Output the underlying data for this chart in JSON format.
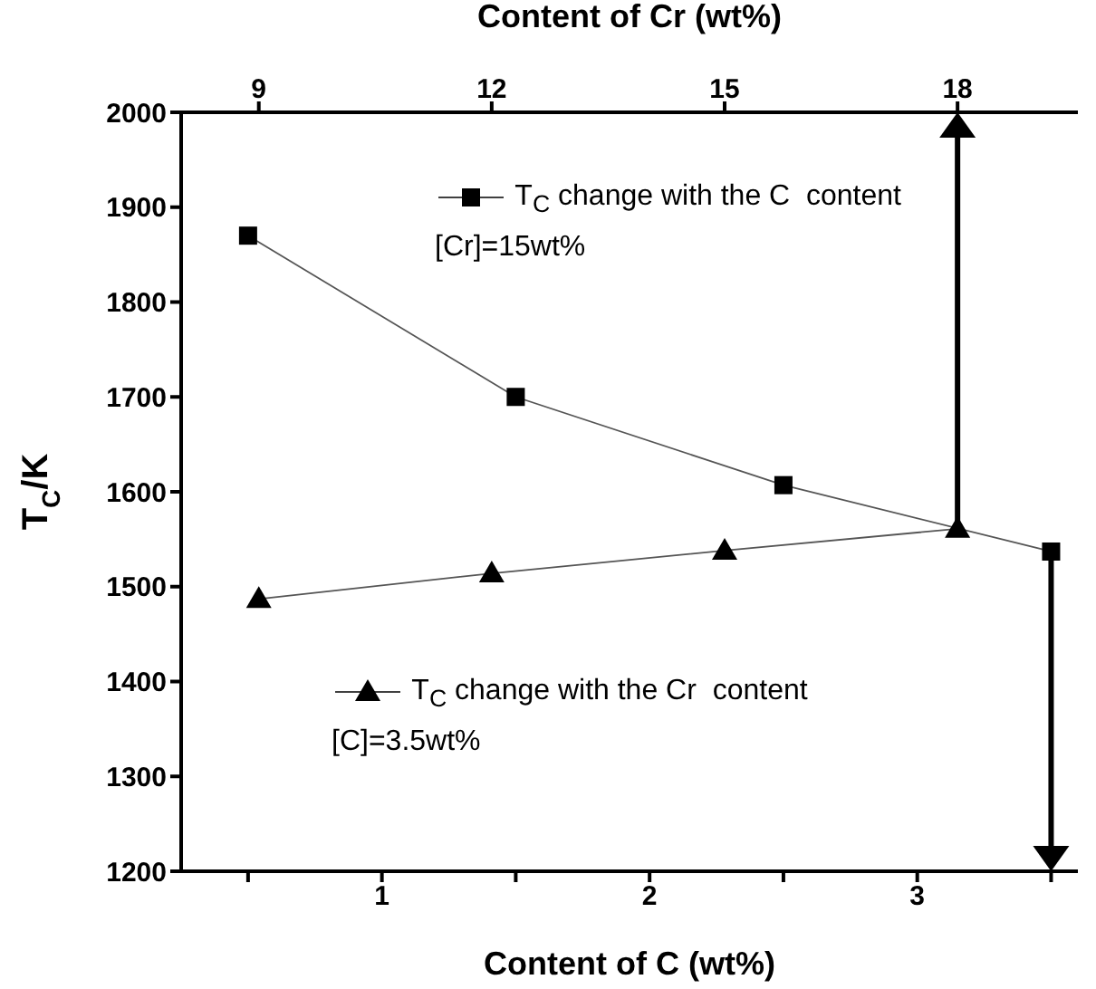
{
  "chart_data": {
    "type": "line",
    "xlabel": "Content of C (wt%)",
    "x2label": "Content of Cr (wt%)",
    "ylabel": "T$_{C}$/K",
    "xlim": [
      0.25,
      3.6
    ],
    "xticks": [
      {
        "value": 0.5,
        "label": null
      },
      1,
      {
        "value": 1.5,
        "label": null
      },
      2,
      {
        "value": 2.5,
        "label": null
      },
      3,
      {
        "value": 3.5,
        "label": null
      }
    ],
    "x2lim": [
      8,
      19.55
    ],
    "x2ticks": [
      9,
      12,
      15,
      18
    ],
    "ylim": [
      1200,
      2000
    ],
    "yticks": [
      1200,
      1300,
      1400,
      1500,
      1600,
      1700,
      1800,
      1900,
      2000
    ],
    "legend": "top",
    "line_style": "solid",
    "series": [
      {
        "name": "T$_{C}$ change with the C  content",
        "color": "#000000",
        "marker": "square",
        "x": [
          0.5,
          1.5,
          2.5,
          3.5
        ],
        "values": [
          1870,
          1700,
          1607,
          1537
        ]
      },
      {
        "name": "T$_{C}$ change with the Cr  content",
        "color": "#000000",
        "marker": "triangle",
        "axis": "x2",
        "x": [
          9,
          12,
          15,
          18
        ],
        "values": [
          1487,
          1514,
          1538,
          1561
        ]
      }
    ],
    "annotations": [
      "[Cr]=15wt%",
      "[C]=3.5wt%"
    ]
  }
}
